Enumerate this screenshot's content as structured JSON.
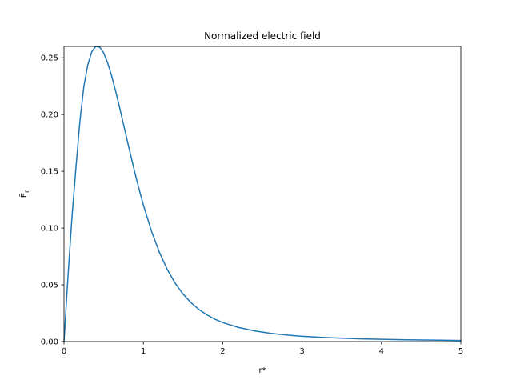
{
  "chart_data": {
    "type": "line",
    "title": "Normalized electric field",
    "xlabel": "r*",
    "ylabel": "Ẽ",
    "ylabel_subscript": "r",
    "xlim": [
      0,
      5
    ],
    "ylim": [
      0,
      0.26
    ],
    "xticks": [
      0,
      1,
      2,
      3,
      4,
      5
    ],
    "xtick_labels": [
      "0",
      "1",
      "2",
      "3",
      "4",
      "5"
    ],
    "yticks": [
      0.0,
      0.05,
      0.1,
      0.15,
      0.2,
      0.25
    ],
    "ytick_labels": [
      "0.00",
      "0.05",
      "0.10",
      "0.15",
      "0.20",
      "0.25"
    ],
    "grid": false,
    "series": [
      {
        "color": "#1f77b4",
        "x": [
          0,
          0.05,
          0.1,
          0.15,
          0.2,
          0.25,
          0.3,
          0.35,
          0.4,
          0.45,
          0.5,
          0.55,
          0.6,
          0.65,
          0.7,
          0.75,
          0.8,
          0.85,
          0.9,
          0.95,
          1.0,
          1.1,
          1.2,
          1.3,
          1.4,
          1.5,
          1.6,
          1.7,
          1.8,
          1.9,
          2.0,
          2.2,
          2.4,
          2.6,
          2.8,
          3.0,
          3.25,
          3.5,
          3.75,
          4.0,
          4.25,
          4.5,
          4.75,
          5.0
        ],
        "y": [
          0.0,
          0.0571,
          0.1093,
          0.1527,
          0.1937,
          0.2248,
          0.2438,
          0.2553,
          0.26,
          0.2594,
          0.2543,
          0.2455,
          0.2341,
          0.2208,
          0.2063,
          0.1913,
          0.1762,
          0.1613,
          0.1469,
          0.1332,
          0.1204,
          0.0978,
          0.079,
          0.0637,
          0.0515,
          0.0419,
          0.0343,
          0.0283,
          0.0236,
          0.0198,
          0.0168,
          0.0124,
          0.0094,
          0.0073,
          0.0058,
          0.0047,
          0.0037,
          0.003,
          0.0024,
          0.002,
          0.0017,
          0.0014,
          0.0012,
          0.001
        ]
      }
    ]
  }
}
